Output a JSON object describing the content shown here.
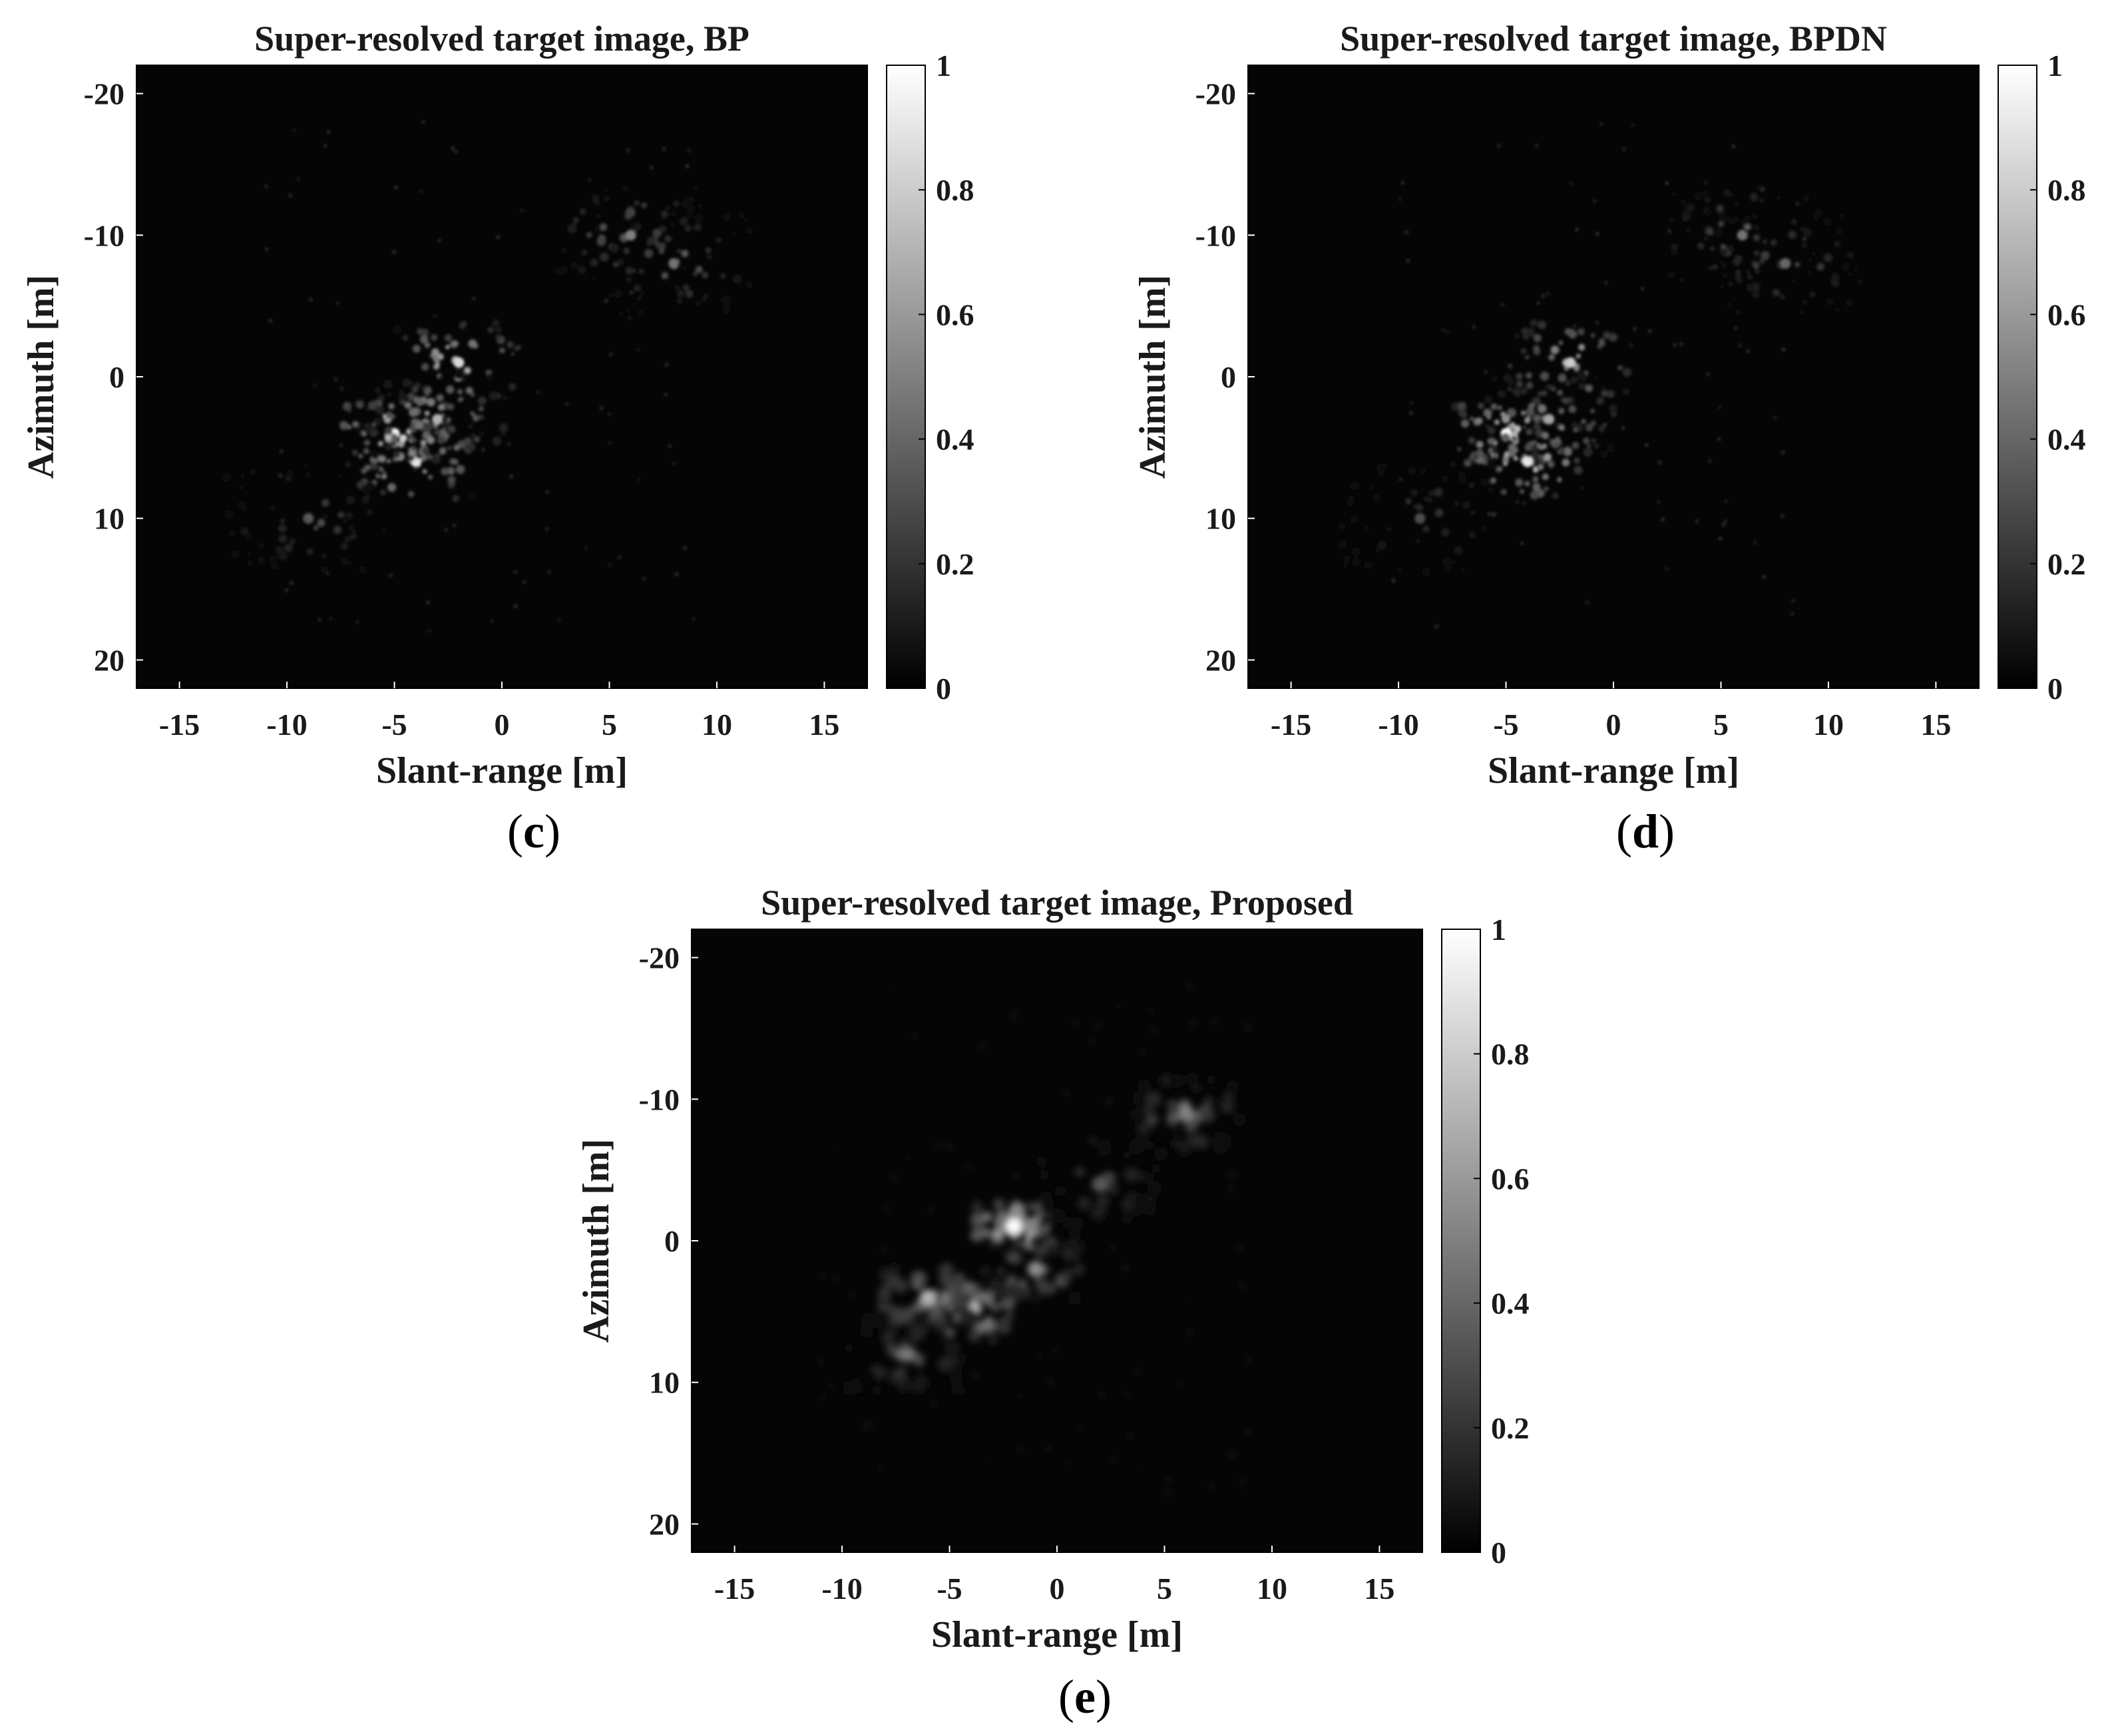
{
  "chart_data": [
    {
      "type": "heatmap",
      "title": "Super-resolved target image, BP",
      "xlabel": "Slant-range [m]",
      "ylabel": "Azimuth [m]",
      "xlim": [
        -17,
        17
      ],
      "ylim": [
        -22,
        22
      ],
      "y_reversed": true,
      "xticks": [
        -15,
        -10,
        -5,
        0,
        5,
        10,
        15
      ],
      "yticks": [
        -20,
        -10,
        0,
        10,
        20
      ],
      "colormap": "gray",
      "colorbar": {
        "range": [
          0,
          1
        ],
        "ticks": [
          "0",
          "0.2",
          "0.4",
          "0.6",
          "0.8",
          "1"
        ]
      },
      "description_points": [
        {
          "x": -5,
          "y": 4,
          "value": 1.0
        },
        {
          "x": -4,
          "y": 6,
          "value": 0.9
        },
        {
          "x": -2,
          "y": -1,
          "value": 0.85
        },
        {
          "x": -3,
          "y": 3,
          "value": 0.7
        },
        {
          "x": 6,
          "y": -10,
          "value": 0.5
        },
        {
          "x": 8,
          "y": -8,
          "value": 0.45
        },
        {
          "x": -9,
          "y": 10,
          "value": 0.35
        }
      ],
      "caption": "c"
    },
    {
      "type": "heatmap",
      "title": "Super-resolved target image, BPDN",
      "xlabel": "Slant-range [m]",
      "ylabel": "Azimuth [m]",
      "xlim": [
        -17,
        17
      ],
      "ylim": [
        -22,
        22
      ],
      "y_reversed": true,
      "xticks": [
        -15,
        -10,
        -5,
        0,
        5,
        10,
        15
      ],
      "yticks": [
        -20,
        -10,
        0,
        10,
        20
      ],
      "colormap": "gray",
      "colorbar": {
        "range": [
          0,
          1
        ],
        "ticks": [
          "0",
          "0.2",
          "0.4",
          "0.6",
          "0.8",
          "1"
        ]
      },
      "description_points": [
        {
          "x": -5,
          "y": 4,
          "value": 1.0
        },
        {
          "x": -4,
          "y": 6,
          "value": 0.9
        },
        {
          "x": -2,
          "y": -1,
          "value": 0.8
        },
        {
          "x": -3,
          "y": 3,
          "value": 0.65
        },
        {
          "x": 6,
          "y": -10,
          "value": 0.45
        },
        {
          "x": 8,
          "y": -8,
          "value": 0.4
        },
        {
          "x": -9,
          "y": 10,
          "value": 0.3
        }
      ],
      "caption": "d"
    },
    {
      "type": "heatmap",
      "title": "Super-resolved target image, Proposed",
      "xlabel": "Slant-range [m]",
      "ylabel": "Azimuth [m]",
      "xlim": [
        -17,
        17
      ],
      "ylim": [
        -22,
        22
      ],
      "y_reversed": true,
      "xticks": [
        -15,
        -10,
        -5,
        0,
        5,
        10,
        15
      ],
      "yticks": [
        -20,
        -10,
        0,
        10,
        20
      ],
      "colormap": "gray",
      "colorbar": {
        "range": [
          0,
          1
        ],
        "ticks": [
          "0",
          "0.2",
          "0.4",
          "0.6",
          "0.8",
          "1"
        ]
      },
      "description_points": [
        {
          "x": -2,
          "y": -1,
          "value": 1.0
        },
        {
          "x": -4,
          "y": 5,
          "value": 0.85
        },
        {
          "x": -6,
          "y": 4,
          "value": 0.7
        },
        {
          "x": -1,
          "y": 2,
          "value": 0.55
        },
        {
          "x": 6,
          "y": -9,
          "value": 0.5
        },
        {
          "x": -7,
          "y": 8,
          "value": 0.45
        },
        {
          "x": 2,
          "y": -4,
          "value": 0.35
        }
      ],
      "caption": "e"
    }
  ],
  "captions": {
    "c": "c",
    "d": "d",
    "e": "e"
  }
}
